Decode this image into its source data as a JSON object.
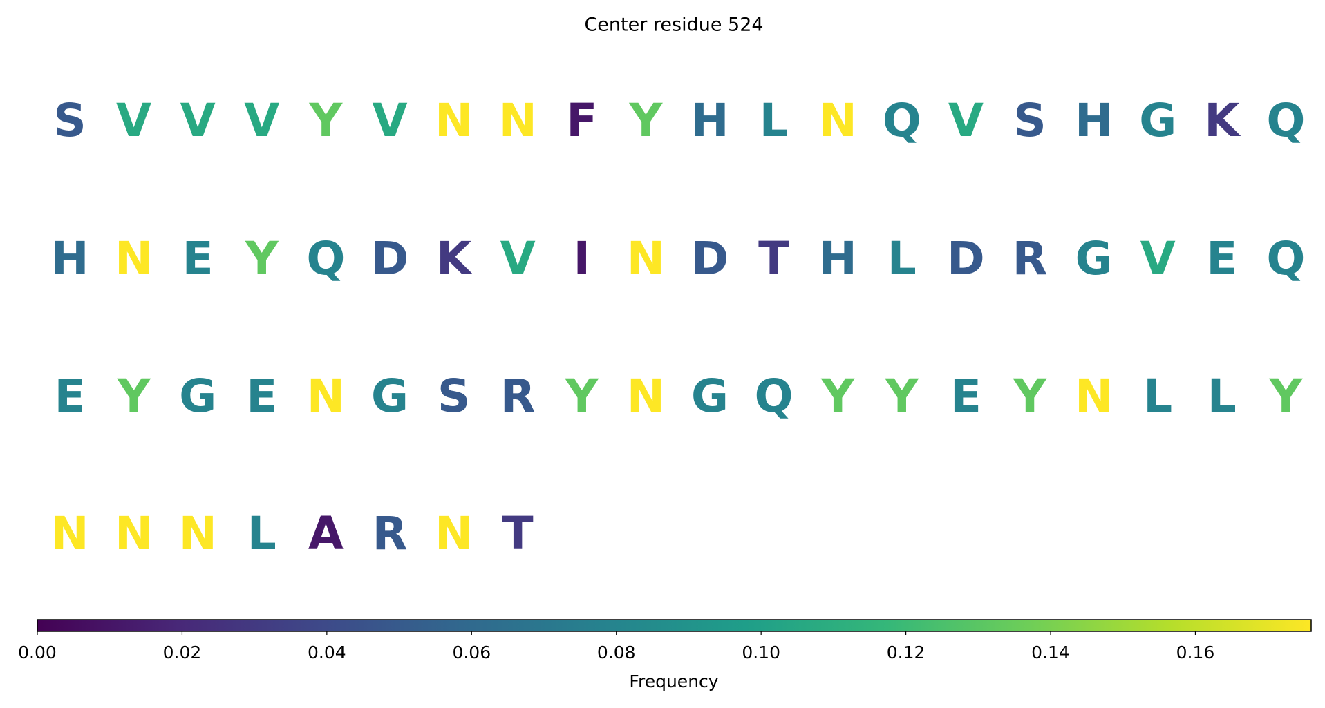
{
  "chart_data": {
    "type": "sequence",
    "title": "Center residue 524",
    "colormap": "viridis",
    "categories": [
      "S",
      "V",
      "V",
      "V",
      "Y",
      "V",
      "N",
      "N",
      "F",
      "Y",
      "H",
      "L",
      "N",
      "Q",
      "V",
      "S",
      "H",
      "G",
      "K",
      "Q",
      "H",
      "N",
      "E",
      "Y",
      "Q",
      "D",
      "K",
      "V",
      "I",
      "N",
      "D",
      "T",
      "H",
      "L",
      "D",
      "R",
      "G",
      "V",
      "E",
      "Q",
      "E",
      "Y",
      "G",
      "E",
      "N",
      "G",
      "S",
      "R",
      "Y",
      "N",
      "G",
      "Q",
      "Y",
      "Y",
      "E",
      "Y",
      "N",
      "L",
      "L",
      "Y",
      "N",
      "N",
      "N",
      "L",
      "A",
      "R",
      "N",
      "T"
    ],
    "values": [
      0.049,
      0.106,
      0.106,
      0.106,
      0.132,
      0.106,
      0.176,
      0.176,
      0.011,
      0.132,
      0.062,
      0.079,
      0.176,
      0.079,
      0.106,
      0.049,
      0.062,
      0.079,
      0.03,
      0.079,
      0.062,
      0.176,
      0.079,
      0.132,
      0.079,
      0.049,
      0.03,
      0.106,
      0.011,
      0.176,
      0.049,
      0.03,
      0.062,
      0.079,
      0.049,
      0.049,
      0.079,
      0.106,
      0.079,
      0.079,
      0.079,
      0.132,
      0.079,
      0.079,
      0.176,
      0.079,
      0.049,
      0.049,
      0.132,
      0.176,
      0.079,
      0.079,
      0.132,
      0.132,
      0.079,
      0.132,
      0.176,
      0.079,
      0.079,
      0.132,
      0.176,
      0.176,
      0.176,
      0.079,
      0.011,
      0.049,
      0.176,
      0.03
    ],
    "xlim": [
      0,
      0.176
    ],
    "xticks": [
      {
        "value": 0,
        "label": "0.00"
      },
      {
        "value": 0.02,
        "label": "0.02"
      },
      {
        "value": 0.04,
        "label": "0.04"
      },
      {
        "value": 0.06,
        "label": "0.06"
      },
      {
        "value": 0.08,
        "label": "0.08"
      },
      {
        "value": 0.1,
        "label": "0.10"
      },
      {
        "value": 0.12,
        "label": "0.12"
      },
      {
        "value": 0.14,
        "label": "0.14"
      },
      {
        "value": 0.16,
        "label": "0.16"
      }
    ],
    "xlabel": "Frequency"
  }
}
